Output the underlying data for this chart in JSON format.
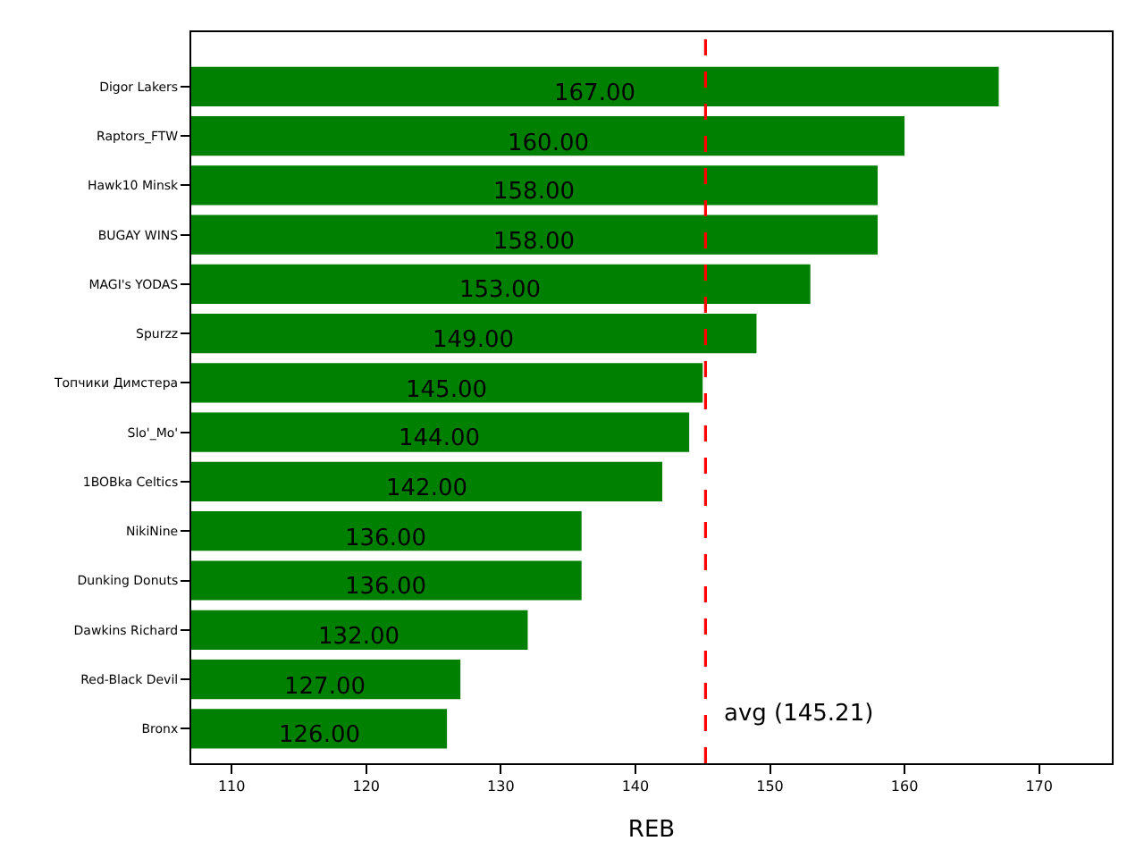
{
  "chart_data": {
    "type": "bar",
    "orientation": "horizontal",
    "xlabel": "REB",
    "categories": [
      "Digor Lakers",
      "Raptors_FTW",
      "Hawk10 Minsk",
      "BUGAY WINS",
      "MAGI's YODAS",
      "Spurzz",
      "Топчики Димстера",
      "Slo'_Mo'",
      "1BOBka Celtics",
      "NikiNine",
      "Dunking Donuts",
      "Dawkins Richard",
      "Red-Black Devil",
      "Bronx"
    ],
    "values": [
      167,
      160,
      158,
      158,
      153,
      149,
      145,
      144,
      142,
      136,
      136,
      132,
      127,
      126
    ],
    "value_labels": [
      "167.00",
      "160.00",
      "158.00",
      "158.00",
      "153.00",
      "149.00",
      "145.00",
      "144.00",
      "142.00",
      "136.00",
      "136.00",
      "132.00",
      "127.00",
      "126.00"
    ],
    "color": "#008000",
    "xlim": [
      107,
      175.4
    ],
    "xticks": [
      110,
      120,
      130,
      140,
      150,
      160,
      170
    ],
    "ref_lines": [
      {
        "axis": "x",
        "value": 145.21,
        "label": "avg (145.21)",
        "color": "#ff0000",
        "line_style": "dashed"
      }
    ]
  }
}
